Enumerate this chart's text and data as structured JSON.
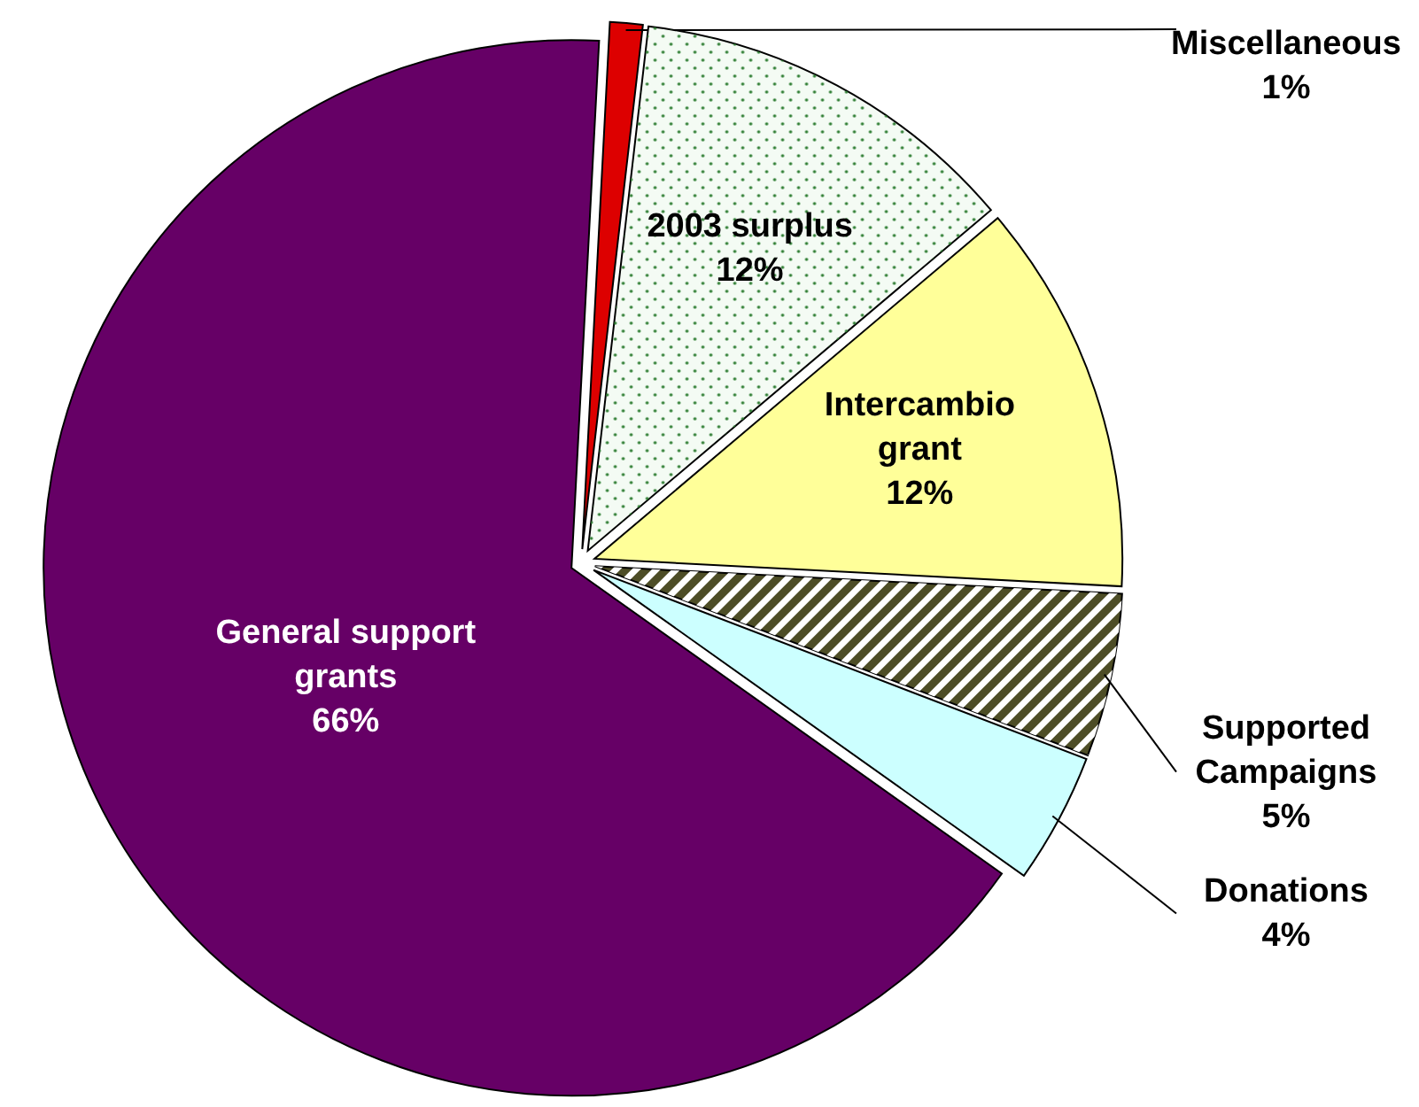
{
  "chart_data": {
    "type": "pie",
    "categories": [
      "Miscellaneous",
      "2003 surplus",
      "Intercambio grant",
      "Supported Campaigns",
      "Donations",
      "General support grants"
    ],
    "values": [
      1,
      12,
      12,
      5,
      4,
      66
    ],
    "value_labels": [
      "1%",
      "12%",
      "12%",
      "5%",
      "4%",
      "66%"
    ],
    "colors": [
      "#dd0000",
      "#f4fbf4",
      "#ffff99",
      "#4d4d26",
      "#ccffff",
      "#660066"
    ]
  }
}
